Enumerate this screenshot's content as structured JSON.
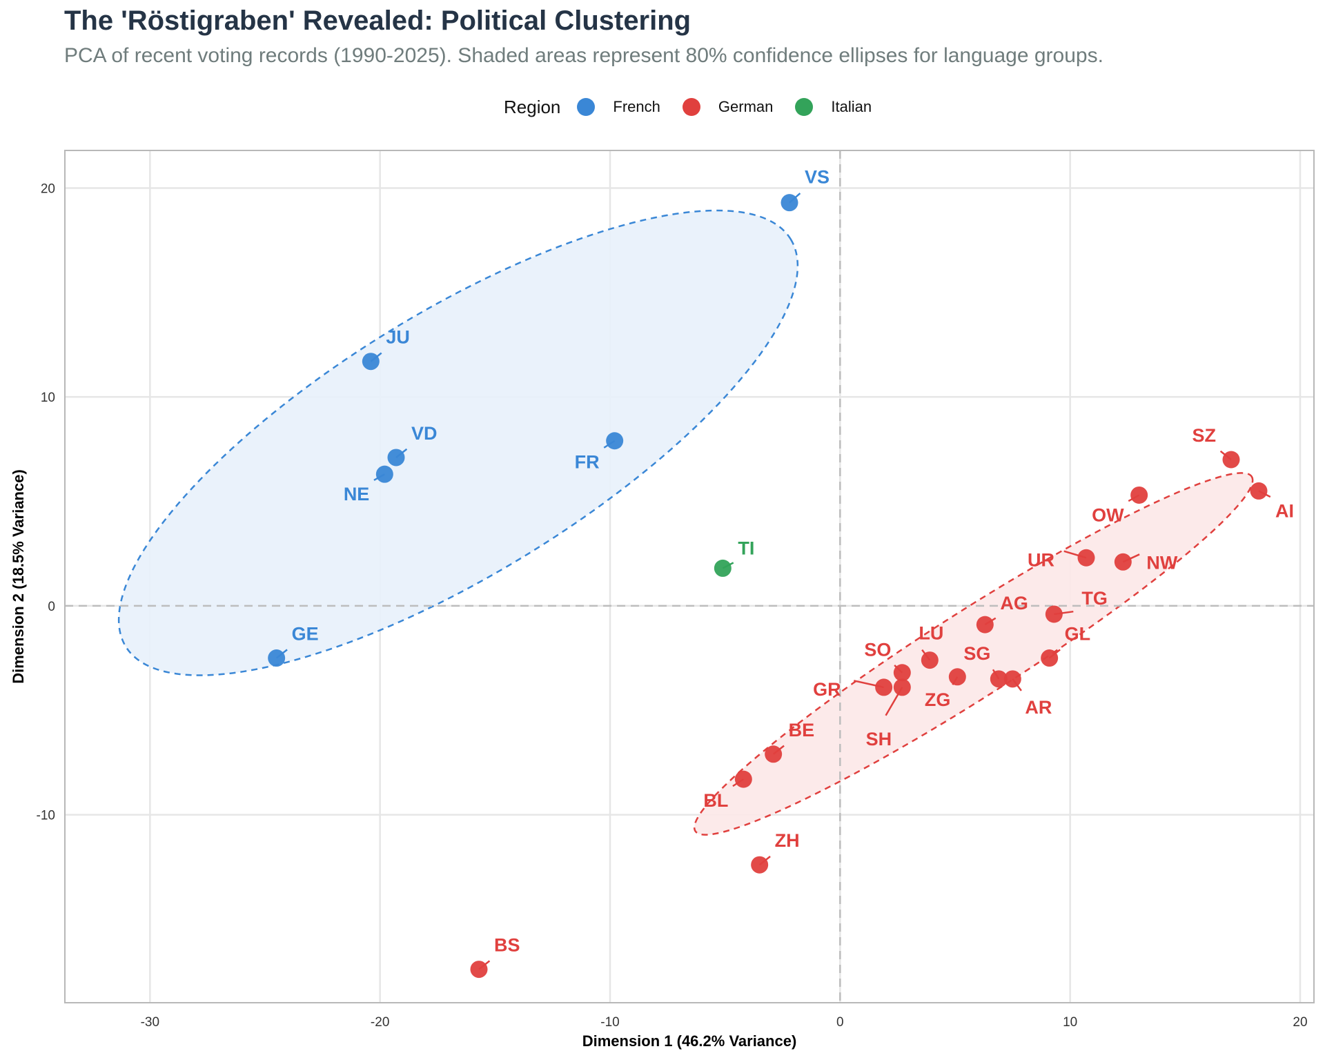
{
  "title": "The 'Röstigraben' Revealed: Political Clustering",
  "subtitle": "PCA of recent voting records (1990-2025). Shaded areas represent 80% confidence ellipses for language groups.",
  "legend": {
    "title": "Region",
    "items": [
      {
        "label": "French",
        "color": "#3a87d6"
      },
      {
        "label": "German",
        "color": "#e0403e"
      },
      {
        "label": "Italian",
        "color": "#33a35a"
      }
    ]
  },
  "chart_data": {
    "type": "scatter",
    "title": "The 'Röstigraben' Revealed: Political Clustering",
    "subtitle": "PCA of recent voting records (1990-2025). Shaded areas represent 80% confidence ellipses for language groups.",
    "xlabel": "Dimension 1 (46.2% Variance)",
    "ylabel": "Dimension 2 (18.5% Variance)",
    "xlim": [
      -33.7,
      20.6
    ],
    "ylim": [
      -19.0,
      21.8
    ],
    "xticks": [
      -30,
      -20,
      -10,
      0,
      10,
      20
    ],
    "yticks": [
      -10,
      0,
      10,
      20
    ],
    "grid": true,
    "reference_lines": {
      "x": 0,
      "y": 0,
      "style": "dashed"
    },
    "legend_position": "top",
    "colors": {
      "French": "#3a87d6",
      "German": "#e0403e",
      "Italian": "#33a35a"
    },
    "series": [
      {
        "name": "French",
        "points": [
          {
            "label": "VS",
            "x": -2.2,
            "y": 19.3
          },
          {
            "label": "JU",
            "x": -20.4,
            "y": 11.7
          },
          {
            "label": "VD",
            "x": -19.3,
            "y": 7.1
          },
          {
            "label": "NE",
            "x": -19.8,
            "y": 6.3
          },
          {
            "label": "FR",
            "x": -9.8,
            "y": 7.9
          },
          {
            "label": "GE",
            "x": -24.5,
            "y": -2.5
          }
        ]
      },
      {
        "name": "German",
        "points": [
          {
            "label": "SZ",
            "x": 17.0,
            "y": 7.0
          },
          {
            "label": "AI",
            "x": 18.2,
            "y": 5.5
          },
          {
            "label": "OW",
            "x": 13.0,
            "y": 5.3
          },
          {
            "label": "UR",
            "x": 10.7,
            "y": 2.3
          },
          {
            "label": "NW",
            "x": 12.3,
            "y": 2.1
          },
          {
            "label": "TG",
            "x": 9.3,
            "y": -0.4
          },
          {
            "label": "AG",
            "x": 6.3,
            "y": -0.9
          },
          {
            "label": "GL",
            "x": 9.1,
            "y": -2.5
          },
          {
            "label": "LU",
            "x": 3.9,
            "y": -2.6
          },
          {
            "label": "SO",
            "x": 2.7,
            "y": -3.2
          },
          {
            "label": "ZG",
            "x": 5.1,
            "y": -3.4
          },
          {
            "label": "SG",
            "x": 6.9,
            "y": -3.5
          },
          {
            "label": "AR",
            "x": 7.5,
            "y": -3.5
          },
          {
            "label": "GR",
            "x": 1.9,
            "y": -3.9
          },
          {
            "label": "SH",
            "x": 2.7,
            "y": -3.9
          },
          {
            "label": "BE",
            "x": -2.9,
            "y": -7.1
          },
          {
            "label": "BL",
            "x": -4.2,
            "y": -8.3
          },
          {
            "label": "ZH",
            "x": -3.5,
            "y": -12.4
          },
          {
            "label": "BS",
            "x": -15.7,
            "y": -17.4
          }
        ]
      },
      {
        "name": "Italian",
        "points": [
          {
            "label": "TI",
            "x": -5.1,
            "y": 1.8
          }
        ]
      }
    ],
    "ellipses": [
      {
        "group": "French",
        "level": 0.8,
        "center": [
          -16.6,
          7.8
        ],
        "extent_x": [
          -31.2,
          -2.3
        ],
        "extent_y": [
          -4.5,
          20.1
        ]
      },
      {
        "group": "German",
        "level": 0.8,
        "center": [
          5.8,
          -2.3
        ],
        "extent_x": [
          -6.5,
          18.2
        ],
        "extent_y": [
          -11.1,
          6.6
        ]
      }
    ]
  }
}
